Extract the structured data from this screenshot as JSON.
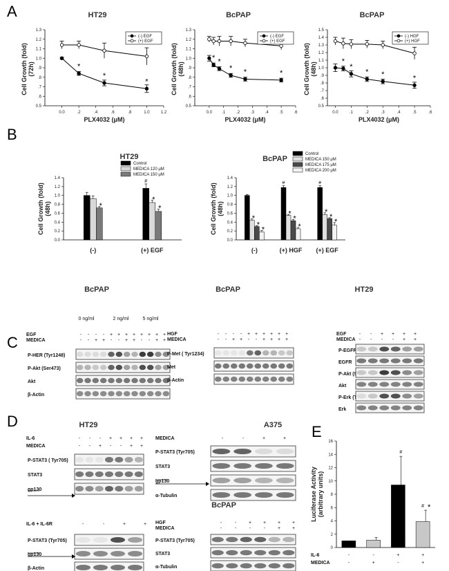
{
  "panels": {
    "a": "A",
    "b": "B",
    "c": "C",
    "d": "D",
    "e": "E"
  },
  "panel_a": {
    "chart_data": [
      {
        "type": "line",
        "title": "HT29",
        "xlabel": "PLX4032 (μM)",
        "ylabel": "Cell Growth (fold)",
        "ylabel2": "(72h)",
        "xlim": [
          -0.2,
          1.2
        ],
        "ylim": [
          0.5,
          1.3
        ],
        "xticks": [
          "0.0",
          ".2",
          ".4",
          ".6",
          ".8",
          "1.0",
          "1.2"
        ],
        "yticks": [
          "0.5",
          ".6",
          ".7",
          ".8",
          ".9",
          "1.0",
          "1.1",
          "1.2",
          "1.3"
        ],
        "x": [
          0,
          0.2,
          0.5,
          1.0
        ],
        "series": [
          {
            "name": "(-) EGF",
            "values": [
              1.0,
              0.84,
              0.74,
              0.68
            ],
            "err": [
              0.01,
              0.02,
              0.03,
              0.04
            ],
            "marker": "filled"
          },
          {
            "name": "(+) EGF",
            "values": [
              1.14,
              1.14,
              1.08,
              1.02
            ],
            "err": [
              0.04,
              0.04,
              0.08,
              0.09
            ],
            "marker": "open"
          }
        ],
        "significance": "*"
      },
      {
        "type": "line",
        "title": "BcPAP",
        "xlabel": "PLX4032 (μM)",
        "ylabel": "Cell Growth (fold)",
        "ylabel2": "(48h)",
        "xlim": [
          -0.1,
          0.6
        ],
        "ylim": [
          0.5,
          1.3
        ],
        "xticks": [
          "0.0",
          ".1",
          ".2",
          ".3",
          ".4",
          ".5",
          ".6"
        ],
        "yticks": [
          "0.5",
          ".6",
          ".7",
          ".8",
          ".9",
          "1.0",
          "1.1",
          "1.2",
          "1.3"
        ],
        "x": [
          0,
          0.03,
          0.07,
          0.15,
          0.25,
          0.5
        ],
        "series": [
          {
            "name": "(-) EGF",
            "values": [
              1.0,
              0.93,
              0.89,
              0.82,
              0.78,
              0.77
            ],
            "err": [
              0.03,
              0.02,
              0.02,
              0.02,
              0.02,
              0.02
            ],
            "marker": "filled"
          },
          {
            "name": "(+) EGF",
            "values": [
              1.2,
              1.18,
              1.18,
              1.18,
              1.16,
              1.13
            ],
            "err": [
              0.03,
              0.04,
              0.05,
              0.05,
              0.04,
              0.04
            ],
            "marker": "open"
          }
        ],
        "significance": "*"
      },
      {
        "type": "line",
        "title": "BcPAP",
        "xlabel": "PLX4032 (μM)",
        "ylabel": "Cell Growth (fold)",
        "ylabel2": "(48h)",
        "xlim": [
          -0.05,
          0.6
        ],
        "ylim": [
          0.5,
          1.5
        ],
        "xticks": [
          "0.0",
          ".1",
          ".2",
          ".3",
          ".4",
          ".5",
          ".6"
        ],
        "yticks": [
          "0.5",
          ".6",
          ".7",
          ".8",
          ".9",
          "1.0",
          "1.1",
          "1.2",
          "1.3",
          "1.4",
          "1.5"
        ],
        "x": [
          0,
          0.05,
          0.1,
          0.2,
          0.3,
          0.5
        ],
        "series": [
          {
            "name": "(-) HGF",
            "values": [
              1.0,
              0.99,
              0.92,
              0.85,
              0.82,
              0.77
            ],
            "err": [
              0.05,
              0.03,
              0.04,
              0.03,
              0.03,
              0.04
            ],
            "marker": "filled"
          },
          {
            "name": "(+) HGF",
            "values": [
              1.35,
              1.32,
              1.31,
              1.31,
              1.3,
              1.19
            ],
            "err": [
              0.05,
              0.07,
              0.06,
              0.05,
              0.05,
              0.08
            ],
            "marker": "open"
          }
        ],
        "significance": "*"
      }
    ]
  },
  "panel_b": {
    "chart_data": [
      {
        "type": "bar",
        "title": "HT29",
        "ylabel": "Cell Growth (fold)",
        "ylabel2": "(48h)",
        "ylim": [
          0,
          1.4
        ],
        "yticks": [
          "0.0",
          "0.2",
          "0.4",
          "0.6",
          "0.8",
          "1.0",
          "1.2",
          "1.4"
        ],
        "categories": [
          "(-)",
          "(+) EGF"
        ],
        "series": [
          {
            "name": "Control",
            "color": "#000000",
            "values": [
              1.0,
              1.16
            ],
            "err": [
              0.07,
              0.1
            ]
          },
          {
            "name": "MEDICA 120 μM",
            "color": "#d9d9d9",
            "values": [
              0.93,
              0.84
            ],
            "err": [
              0.06,
              0.05
            ]
          },
          {
            "name": "MEDICA 150 μM",
            "color": "#7a7a7a",
            "values": [
              0.72,
              0.64
            ],
            "err": [
              0.03,
              0.05
            ]
          }
        ],
        "marks": {
          "hash": "#",
          "star": "*"
        }
      },
      {
        "type": "bar",
        "title": "BcPAP",
        "ylabel": "Cell Growth (fold)",
        "ylabel2": "(48h)",
        "ylim": [
          0,
          1.4
        ],
        "yticks": [
          "0.0",
          "0.2",
          "0.4",
          "0.6",
          "0.8",
          "1.0",
          "1.2",
          "1.4"
        ],
        "categories": [
          "(-)",
          "(+) HGF",
          "(+) EGF"
        ],
        "series": [
          {
            "name": "Control",
            "color": "#000000",
            "values": [
              1.0,
              1.18,
              1.18
            ],
            "err": [
              0.02,
              0.04,
              0.04
            ]
          },
          {
            "name": "MEDICA 150 μM",
            "color": "#e0e0e0",
            "values": [
              0.44,
              0.55,
              0.57
            ],
            "err": [
              0.03,
              0.02,
              0.04
            ]
          },
          {
            "name": "MEDICA 175 μM",
            "color": "#4a4a4a",
            "values": [
              0.3,
              0.43,
              0.48
            ],
            "err": [
              0.02,
              0.03,
              0.02
            ]
          },
          {
            "name": "MEDICA 200 μM",
            "color": "#f2f2f2",
            "values": [
              0.18,
              0.25,
              0.33
            ],
            "err": [
              0.03,
              0.03,
              0.06
            ]
          }
        ],
        "marks": {
          "hash": "#",
          "star": "*"
        }
      }
    ]
  },
  "panel_c": {
    "left": {
      "title": "BcPAP",
      "conc": [
        "0 ng/ml",
        "2 ng/ml",
        "5 ng/ml"
      ],
      "rows": [
        {
          "label": "EGF",
          "signs": [
            "-",
            "-",
            "-",
            "-",
            "+",
            "+",
            "+",
            "+",
            "+",
            "+",
            "+",
            "+"
          ]
        },
        {
          "label": "MEDICA",
          "signs": [
            "-",
            "-",
            "+",
            "+",
            "-",
            "-",
            "+",
            "+",
            "-",
            "-",
            "+",
            "+"
          ]
        }
      ],
      "blots": [
        "P-HER (Tyr1248)",
        "P-Akt (Ser473)",
        "Akt",
        "β-Actin"
      ]
    },
    "mid": {
      "title": "BcPAP",
      "rows": [
        {
          "label": "HGF",
          "signs": [
            "-",
            "-",
            "-",
            "-",
            "+",
            "+",
            "+",
            "+",
            "+",
            "+"
          ]
        },
        {
          "label": "MEDICA",
          "signs": [
            "-",
            "-",
            "+",
            "+",
            "-",
            "-",
            "+",
            "+",
            "+",
            "+"
          ]
        }
      ],
      "blots": [
        "P-Met ( Tyr1234)",
        "Met",
        "β-Actin"
      ]
    },
    "right": {
      "title": "HT29",
      "rows": [
        {
          "label": "EGF",
          "signs": [
            "-",
            "-",
            "+",
            "+",
            "+",
            "+"
          ]
        },
        {
          "label": "MEDICA",
          "signs": [
            "-",
            "-",
            "-",
            "-",
            "+",
            "+"
          ]
        }
      ],
      "blots": [
        "P-EGFR (Tyr1068)",
        "EGFR",
        "P-Akt (Ser473)",
        "Akt",
        "P-Erk (Tyr204(1/2))",
        "Erk"
      ]
    }
  },
  "panel_d": {
    "ht29": {
      "title": "HT29",
      "rows": [
        {
          "label": "IL-6",
          "signs": [
            "-",
            "-",
            "-",
            "+",
            "+",
            "+",
            "+"
          ]
        },
        {
          "label": "MEDICA",
          "signs": [
            "-",
            "-",
            "+",
            "-",
            "-",
            "+",
            "+"
          ]
        }
      ],
      "blots": [
        "P-STAT3 ( Tyr705)",
        "STAT3",
        "gp130"
      ],
      "truncated": "truncated"
    },
    "a375": {
      "title": "A375",
      "rows": [
        {
          "label": "MEDICA",
          "signs": [
            "-",
            "-",
            "+",
            "+"
          ]
        }
      ],
      "blots": [
        "P-STAT3 (Tyr705)",
        "STAT3",
        "gp130",
        "α-Tubulin"
      ],
      "truncated": "truncated"
    },
    "bcpap_title": "BcPAP",
    "bcpap_left": {
      "rows": [
        {
          "label": "IL-6 + IL-6R",
          "signs": [
            "-",
            "-",
            "+",
            "+"
          ]
        }
      ],
      "blots": [
        "P-STAT3 (Tyr705)",
        "gp130",
        "β-Actin"
      ],
      "truncated": "truncated"
    },
    "bcpap_right": {
      "rows": [
        {
          "label": "HGF",
          "signs": [
            "-",
            "-",
            "+",
            "+",
            "+",
            "+"
          ]
        },
        {
          "label": "MEDICA",
          "signs": [
            "-",
            "-",
            "-",
            "-",
            "+",
            "+"
          ]
        }
      ],
      "blots": [
        "P-STAT3 (Tyr705)",
        "STAT3",
        "α-Tubulin"
      ]
    }
  },
  "panel_e": {
    "chart_data": {
      "type": "bar",
      "ylabel": "Luciferase Activity",
      "ylabel2": "(arbitrary units)",
      "ylim": [
        0,
        16
      ],
      "yticks": [
        "0",
        "2",
        "4",
        "6",
        "8",
        "10",
        "12",
        "14",
        "16"
      ],
      "values": [
        1.0,
        1.1,
        9.4,
        3.9
      ],
      "err": [
        0.0,
        0.4,
        4.3,
        1.7
      ],
      "colors": [
        "#000000",
        "#c8c8c8",
        "#000000",
        "#c8c8c8"
      ],
      "rows": [
        {
          "label": "IL-6",
          "signs": [
            "-",
            "-",
            "+",
            "+"
          ]
        },
        {
          "label": "MEDICA",
          "signs": [
            "-",
            "+",
            "-",
            "+"
          ]
        }
      ],
      "marks": {
        "hash": "#",
        "star": "*"
      }
    }
  }
}
